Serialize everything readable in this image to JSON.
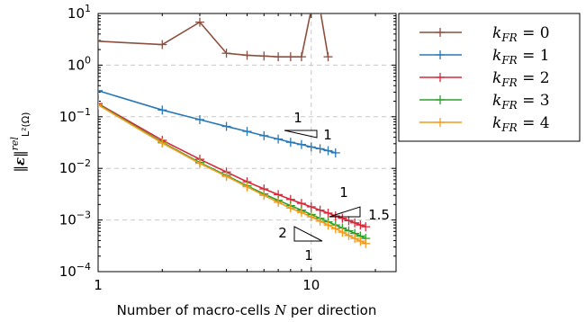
{
  "chart_data": {
    "type": "line",
    "xlabel_prefix": "Number of macro-cells ",
    "xlabel_var": "N",
    "xlabel_suffix": " per direction",
    "ylabel": "‖ε‖ rel L²(Ω)",
    "xscale": "log",
    "yscale": "log",
    "xlim": [
      1,
      25
    ],
    "ylim": [
      0.0001,
      10
    ],
    "x_ticks": [
      {
        "value": 1,
        "label": "1"
      },
      {
        "value": 10,
        "label": "10"
      }
    ],
    "y_ticks": [
      {
        "value": 10,
        "base": "10",
        "exp": "1"
      },
      {
        "value": 1,
        "base": "10",
        "exp": "0"
      },
      {
        "value": 0.1,
        "base": "10",
        "exp": "−1"
      },
      {
        "value": 0.01,
        "base": "10",
        "exp": "−2"
      },
      {
        "value": 0.001,
        "base": "10",
        "exp": "−3"
      },
      {
        "value": 0.0001,
        "base": "10",
        "exp": "−4"
      }
    ],
    "grid": true,
    "legend_position": "top-right",
    "series": [
      {
        "name": "k_FR = 0",
        "color": "#8c4f3f",
        "x": [
          1,
          2,
          3,
          4,
          5,
          6,
          7,
          8,
          9,
          10,
          11,
          12
        ],
        "y": [
          2.9,
          2.5,
          6.8,
          1.7,
          1.55,
          1.5,
          1.45,
          1.45,
          1.45,
          12,
          12,
          1.45
        ]
      },
      {
        "name": "k_FR = 1",
        "color": "#2a78b5",
        "x": [
          1,
          2,
          3,
          4,
          5,
          6,
          7,
          8,
          9,
          10,
          11,
          12,
          13
        ],
        "y": [
          0.32,
          0.135,
          0.088,
          0.065,
          0.052,
          0.043,
          0.037,
          0.032,
          0.029,
          0.026,
          0.024,
          0.022,
          0.02
        ]
      },
      {
        "name": "k_FR = 2",
        "color": "#d7293a",
        "x": [
          1,
          2,
          3,
          4,
          5,
          6,
          7,
          8,
          9,
          10,
          11,
          12,
          13,
          14,
          15,
          16,
          17,
          18
        ],
        "y": [
          0.18,
          0.035,
          0.015,
          0.0085,
          0.0055,
          0.004,
          0.0031,
          0.0025,
          0.0021,
          0.0018,
          0.00155,
          0.00136,
          0.0012,
          0.00108,
          0.00097,
          0.00088,
          0.0008,
          0.00074
        ]
      },
      {
        "name": "k_FR = 3",
        "color": "#2ca02c",
        "x": [
          1,
          2,
          3,
          4,
          5,
          6,
          7,
          8,
          9,
          10,
          11,
          12,
          13,
          14,
          15,
          16,
          17,
          18
        ],
        "y": [
          0.175,
          0.032,
          0.013,
          0.0073,
          0.0046,
          0.0032,
          0.0024,
          0.0019,
          0.00155,
          0.00128,
          0.00108,
          0.00092,
          0.0008,
          0.0007,
          0.00062,
          0.00055,
          0.00049,
          0.00044
        ]
      },
      {
        "name": "k_FR = 4",
        "color": "#f39a1c",
        "x": [
          1,
          2,
          3,
          4,
          5,
          6,
          7,
          8,
          9,
          10,
          11,
          12,
          13,
          14,
          15,
          16,
          17,
          18
        ],
        "y": [
          0.17,
          0.031,
          0.0125,
          0.007,
          0.0044,
          0.003,
          0.0022,
          0.0017,
          0.0014,
          0.00115,
          0.00095,
          0.0008,
          0.00068,
          0.00058,
          0.0005,
          0.00044,
          0.00039,
          0.00035
        ]
      }
    ],
    "slope_triangles": [
      {
        "rise": "1",
        "run": "1"
      },
      {
        "rise": "1",
        "run": "1.5"
      },
      {
        "rise": "2",
        "run": "1"
      }
    ]
  }
}
